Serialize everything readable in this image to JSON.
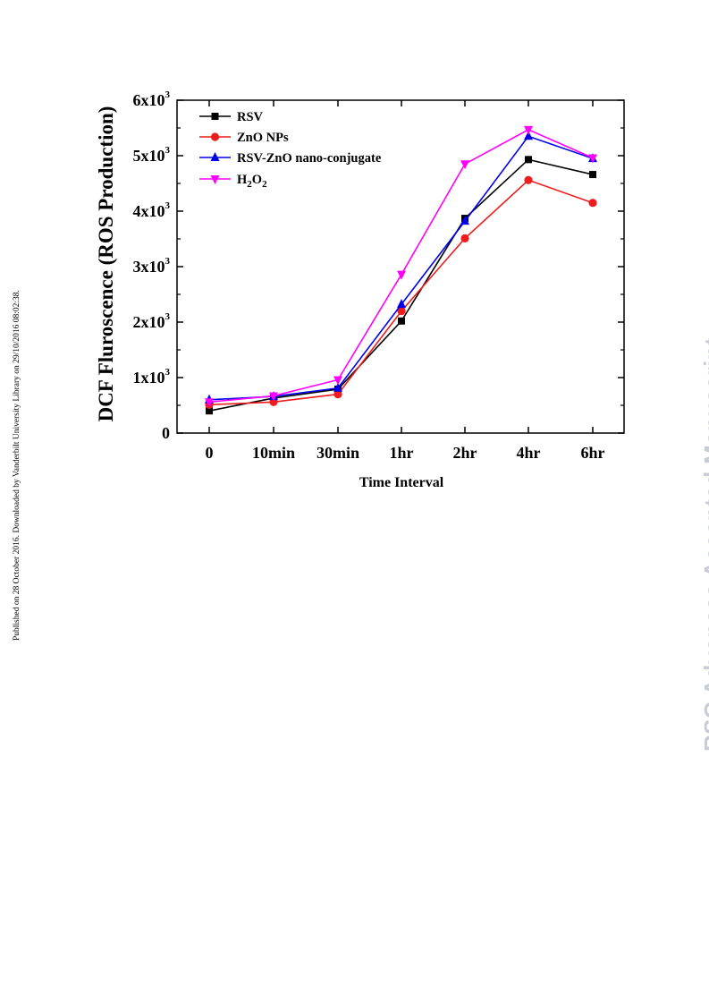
{
  "page": {
    "side_note": "Published on 28 October 2016. Downloaded by Vanderbilt University Library on 29/10/2016 08:02:38.",
    "watermark": "RSC Advances Accepted Manuscript"
  },
  "chart_data": {
    "type": "line",
    "title": "",
    "xlabel": "Time Interval",
    "ylabel": "DCF Fluroscence (ROS Production)",
    "categories": [
      "0",
      "10min",
      "30min",
      "1hr",
      "2hr",
      "4hr",
      "6hr"
    ],
    "ylim": [
      0,
      6000
    ],
    "yticks": [
      {
        "value": 0,
        "mantissa": "0",
        "exp": ""
      },
      {
        "value": 1000,
        "mantissa": "1x10",
        "exp": "3"
      },
      {
        "value": 2000,
        "mantissa": "2x10",
        "exp": "3"
      },
      {
        "value": 3000,
        "mantissa": "3x10",
        "exp": "3"
      },
      {
        "value": 4000,
        "mantissa": "4x10",
        "exp": "3"
      },
      {
        "value": 5000,
        "mantissa": "5x10",
        "exp": "3"
      },
      {
        "value": 6000,
        "mantissa": "6x10",
        "exp": "3"
      }
    ],
    "grid": false,
    "legend_position": "top-left",
    "series": [
      {
        "name": "RSV",
        "name_sub": "",
        "color": "#000000",
        "marker": "square",
        "values": [
          400,
          630,
          790,
          2020,
          3870,
          4930,
          4660
        ]
      },
      {
        "name": "ZnO NPs",
        "name_sub": "",
        "color": "#ee1c1c",
        "marker": "circle",
        "values": [
          510,
          560,
          700,
          2200,
          3510,
          4560,
          4150
        ]
      },
      {
        "name": "RSV-ZnO nano-conjugate",
        "name_sub": "",
        "color": "#0000ee",
        "marker": "triangle-up",
        "values": [
          600,
          660,
          810,
          2320,
          3820,
          5350,
          4950
        ]
      },
      {
        "name": "H",
        "name_sub": "2",
        "name_mid": "O",
        "name_sub2": "2",
        "color": "#ff00ff",
        "marker": "triangle-down",
        "values": [
          560,
          670,
          960,
          2860,
          4850,
          5470,
          4960
        ]
      }
    ]
  }
}
